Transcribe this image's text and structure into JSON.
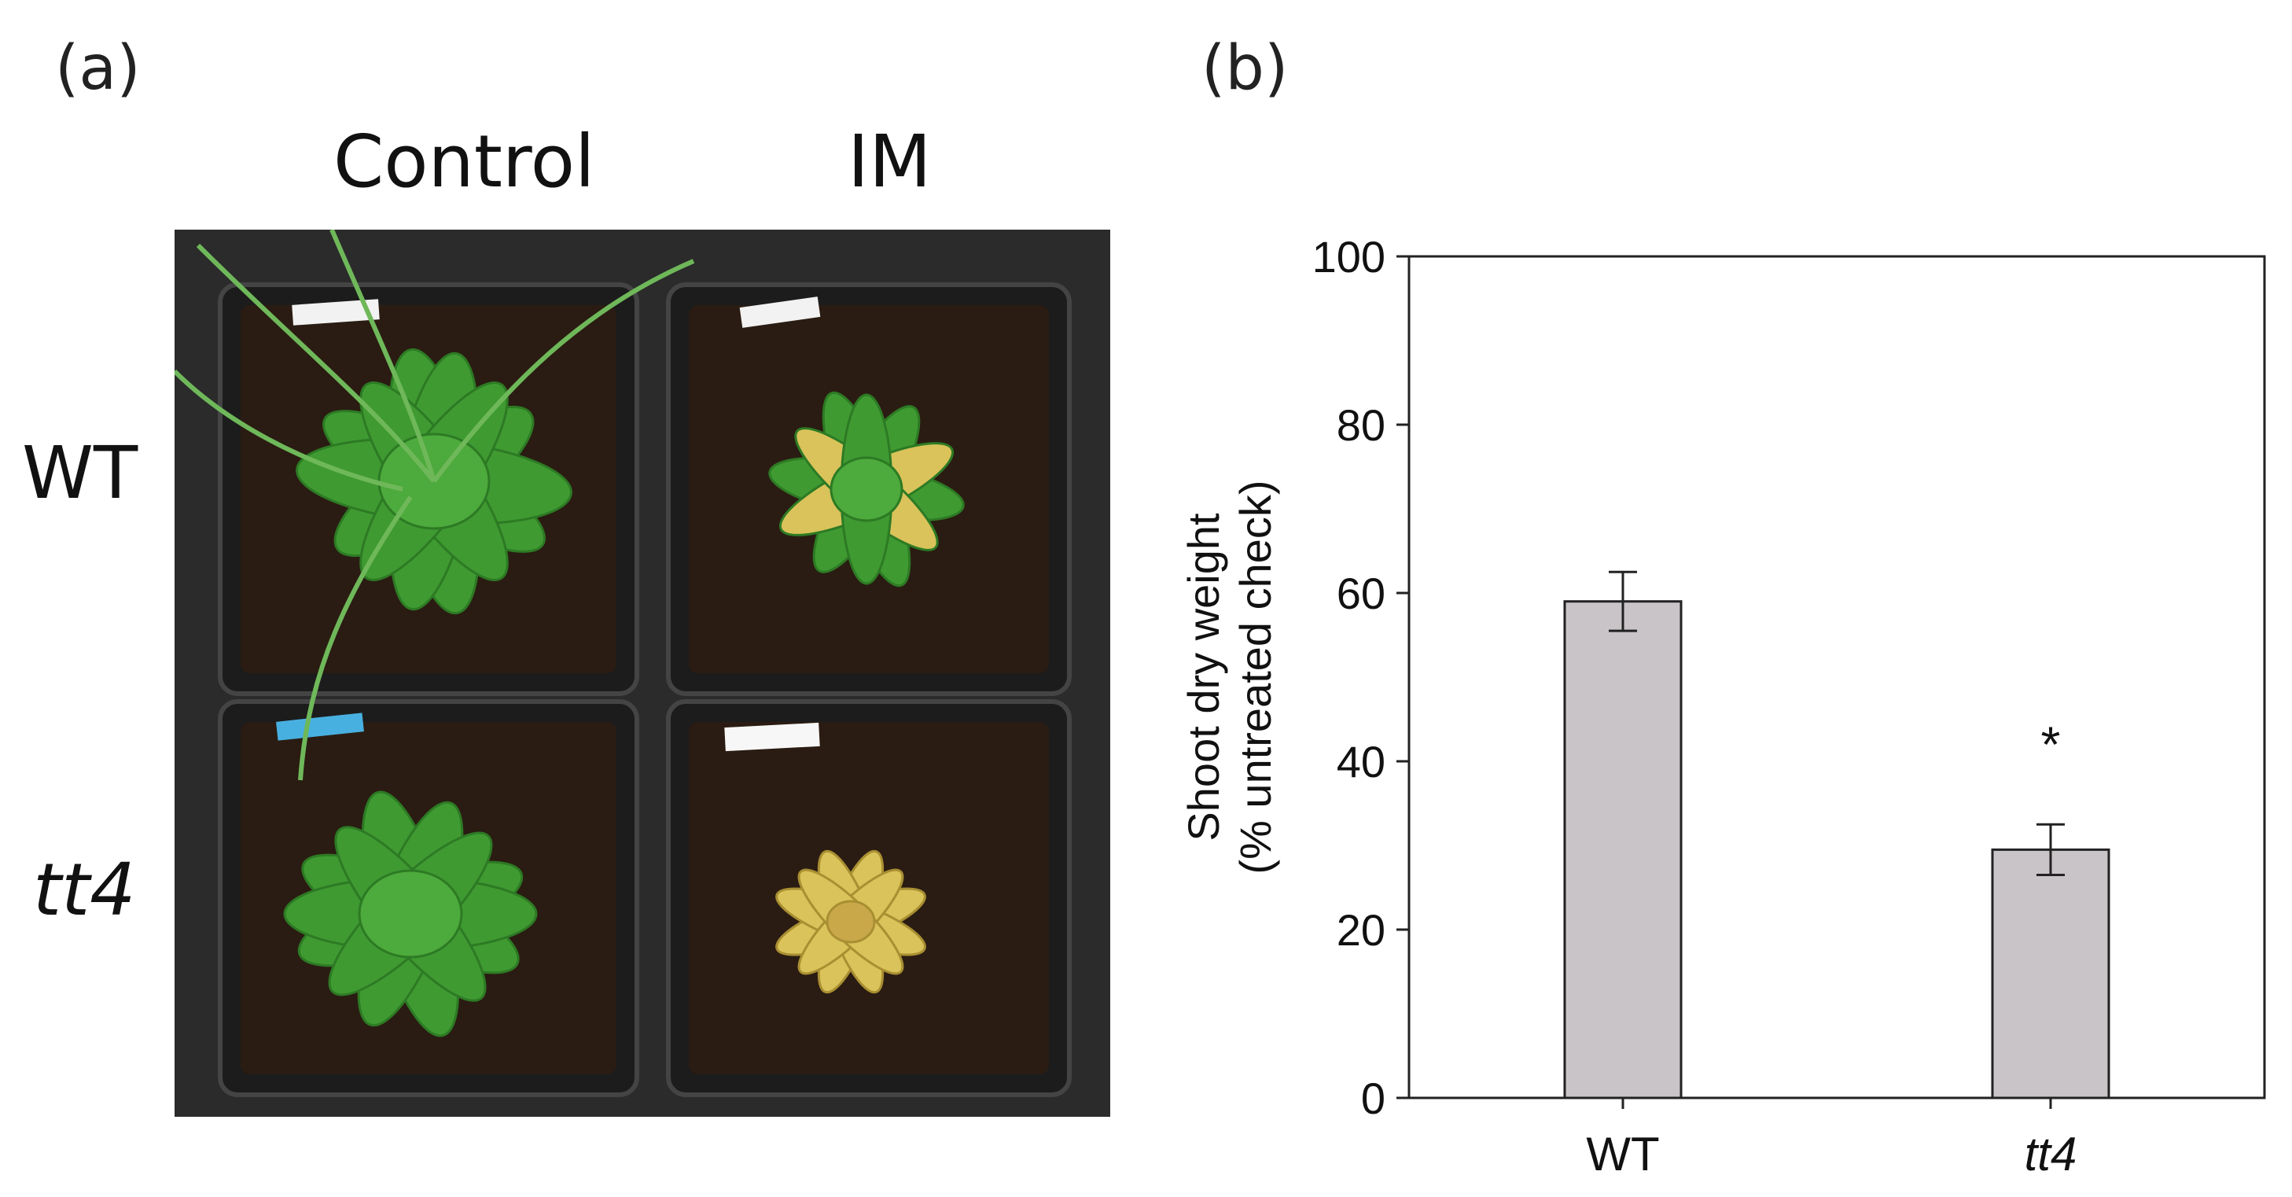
{
  "panels": {
    "a": {
      "label": "(a)"
    },
    "b": {
      "label": "(b)"
    }
  },
  "photo": {
    "column_labels": [
      "Control",
      "IM"
    ],
    "row_labels": [
      "WT",
      "tt4"
    ],
    "background_color": "#2b2b2b",
    "tray_color": "#1c1c1c",
    "soil_color": "#2a1c12",
    "healthy_leaf_color": "#3f9a32",
    "chlorotic_leaf_color": "#d9c35a"
  },
  "chart_data": {
    "type": "bar",
    "categories": [
      "WT",
      "tt4"
    ],
    "values": [
      59,
      29.5
    ],
    "errors": [
      3.5,
      3
    ],
    "significance": [
      "",
      "*"
    ],
    "ylabel_lines": [
      "Shoot dry weight",
      "(% untreated check)"
    ],
    "xlabel": "",
    "ylim": [
      0,
      100
    ],
    "yticks": [
      0,
      20,
      40,
      60,
      80,
      100
    ],
    "bar_color": "#c9c4c7",
    "grid": false
  }
}
